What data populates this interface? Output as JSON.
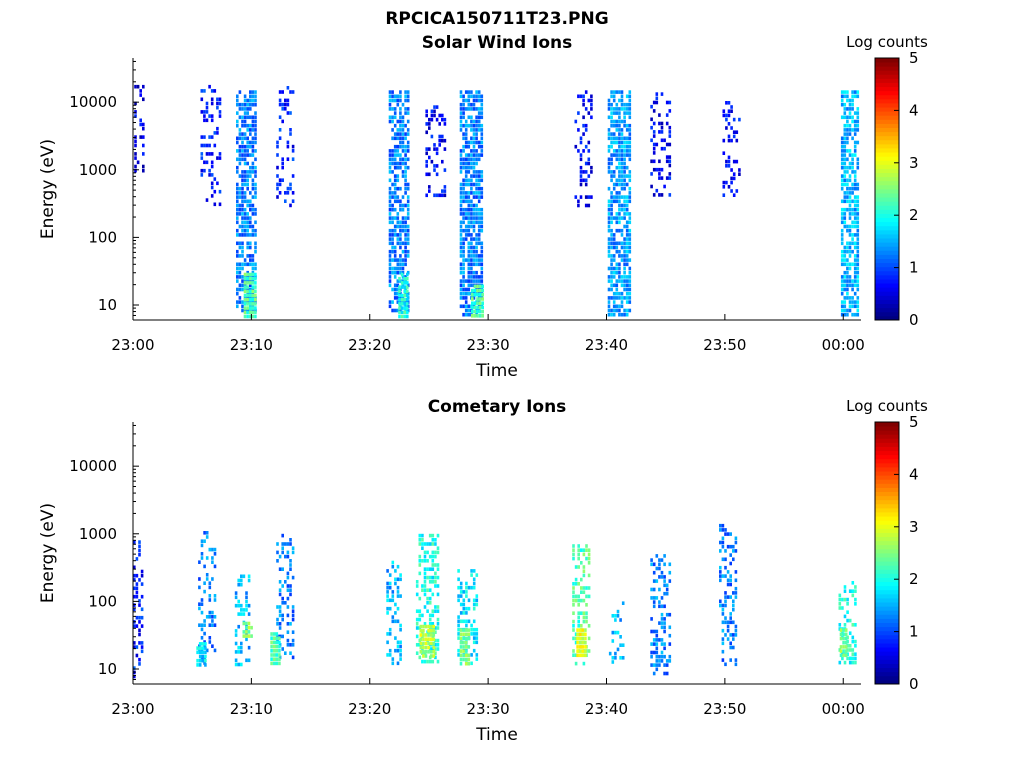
{
  "figure": {
    "title": "RPCICA150711T23.PNG"
  },
  "colorbar": {
    "title": "Log counts",
    "ticks": [
      "0",
      "1",
      "2",
      "3",
      "4",
      "5"
    ],
    "range": [
      0,
      5
    ],
    "colormap": "jet"
  },
  "chart_data": [
    {
      "type": "heatmap",
      "title": "Solar Wind Ions",
      "xlabel": "Time",
      "ylabel": "Energy (eV)",
      "x_ticks": [
        "23:00",
        "23:10",
        "23:20",
        "23:30",
        "23:40",
        "23:50",
        "00:00"
      ],
      "xlim_minutes": [
        0,
        61.5
      ],
      "y_scale": "log",
      "y_ticks": [
        "10",
        "100",
        "1000",
        "10000"
      ],
      "ylim": [
        6,
        45000
      ],
      "bursts": [
        {
          "t": 0.5,
          "width": 0.8,
          "emin": 700,
          "emax": 18000,
          "density": 0.35,
          "level": 0.1
        },
        {
          "t": 6.5,
          "width": 1.6,
          "emin": 300,
          "emax": 18000,
          "density": 0.3,
          "level": 0.15
        },
        {
          "t": 9.5,
          "width": 1.6,
          "emin": 8,
          "emax": 15000,
          "density": 0.7,
          "level": 0.25
        },
        {
          "t": 9.8,
          "width": 0.9,
          "emin": 6,
          "emax": 30,
          "density": 0.95,
          "level": 0.45
        },
        {
          "t": 12.8,
          "width": 1.4,
          "emin": 300,
          "emax": 20000,
          "density": 0.3,
          "level": 0.15
        },
        {
          "t": 22.4,
          "width": 1.6,
          "emin": 8,
          "emax": 15000,
          "density": 0.7,
          "level": 0.25
        },
        {
          "t": 22.8,
          "width": 0.8,
          "emin": 6,
          "emax": 30,
          "density": 0.9,
          "level": 0.4
        },
        {
          "t": 25.5,
          "width": 1.6,
          "emin": 400,
          "emax": 9000,
          "density": 0.3,
          "level": 0.12
        },
        {
          "t": 28.5,
          "width": 1.8,
          "emin": 6,
          "emax": 15000,
          "density": 0.75,
          "level": 0.25
        },
        {
          "t": 29.0,
          "width": 0.9,
          "emin": 6,
          "emax": 20,
          "density": 0.95,
          "level": 0.45
        },
        {
          "t": 38.0,
          "width": 1.4,
          "emin": 300,
          "emax": 15000,
          "density": 0.3,
          "level": 0.12
        },
        {
          "t": 41.0,
          "width": 1.8,
          "emin": 6,
          "emax": 15000,
          "density": 0.75,
          "level": 0.28
        },
        {
          "t": 44.5,
          "width": 1.6,
          "emin": 400,
          "emax": 14000,
          "density": 0.35,
          "level": 0.12
        },
        {
          "t": 50.5,
          "width": 1.4,
          "emin": 400,
          "emax": 12000,
          "density": 0.3,
          "level": 0.12
        },
        {
          "t": 60.6,
          "width": 1.6,
          "emin": 6,
          "emax": 15000,
          "density": 0.7,
          "level": 0.3
        }
      ]
    },
    {
      "type": "heatmap",
      "title": "Cometary Ions",
      "xlabel": "Time",
      "ylabel": "Energy (eV)",
      "x_ticks": [
        "23:00",
        "23:10",
        "23:20",
        "23:30",
        "23:40",
        "23:50",
        "00:00"
      ],
      "xlim_minutes": [
        0,
        61.5
      ],
      "y_scale": "log",
      "y_ticks": [
        "10",
        "100",
        "1000",
        "10000"
      ],
      "ylim": [
        6,
        45000
      ],
      "bursts": [
        {
          "t": 0.4,
          "width": 0.8,
          "emin": 8,
          "emax": 800,
          "density": 0.3,
          "level": 0.15
        },
        {
          "t": 6.2,
          "width": 1.4,
          "emin": 12,
          "emax": 1100,
          "density": 0.35,
          "level": 0.25
        },
        {
          "t": 5.7,
          "width": 0.7,
          "emin": 12,
          "emax": 25,
          "density": 0.9,
          "level": 0.35
        },
        {
          "t": 9.2,
          "width": 1.2,
          "emin": 12,
          "emax": 250,
          "density": 0.4,
          "level": 0.3
        },
        {
          "t": 9.6,
          "width": 0.7,
          "emin": 30,
          "emax": 50,
          "density": 0.9,
          "level": 0.5
        },
        {
          "t": 12.8,
          "width": 1.4,
          "emin": 12,
          "emax": 1000,
          "density": 0.35,
          "level": 0.25
        },
        {
          "t": 12.0,
          "width": 0.8,
          "emin": 12,
          "emax": 35,
          "density": 0.9,
          "level": 0.45
        },
        {
          "t": 22.0,
          "width": 1.2,
          "emin": 12,
          "emax": 400,
          "density": 0.35,
          "level": 0.3
        },
        {
          "t": 24.8,
          "width": 1.8,
          "emin": 12,
          "emax": 1000,
          "density": 0.45,
          "level": 0.4
        },
        {
          "t": 24.8,
          "width": 1.2,
          "emin": 15,
          "emax": 45,
          "density": 0.95,
          "level": 0.55
        },
        {
          "t": 28.2,
          "width": 1.6,
          "emin": 12,
          "emax": 300,
          "density": 0.4,
          "level": 0.35
        },
        {
          "t": 28.0,
          "width": 0.8,
          "emin": 12,
          "emax": 40,
          "density": 0.9,
          "level": 0.5
        },
        {
          "t": 37.8,
          "width": 1.4,
          "emin": 12,
          "emax": 700,
          "density": 0.45,
          "level": 0.45
        },
        {
          "t": 37.8,
          "width": 0.7,
          "emin": 15,
          "emax": 40,
          "density": 0.95,
          "level": 0.6
        },
        {
          "t": 40.8,
          "width": 1.2,
          "emin": 12,
          "emax": 100,
          "density": 0.35,
          "level": 0.3
        },
        {
          "t": 44.5,
          "width": 1.6,
          "emin": 8,
          "emax": 500,
          "density": 0.4,
          "level": 0.25
        },
        {
          "t": 50.2,
          "width": 1.4,
          "emin": 12,
          "emax": 1400,
          "density": 0.35,
          "level": 0.25
        },
        {
          "t": 60.3,
          "width": 1.4,
          "emin": 12,
          "emax": 200,
          "density": 0.4,
          "level": 0.4
        },
        {
          "t": 60.0,
          "width": 0.6,
          "emin": 15,
          "emax": 40,
          "density": 0.95,
          "level": 0.5
        }
      ]
    }
  ]
}
